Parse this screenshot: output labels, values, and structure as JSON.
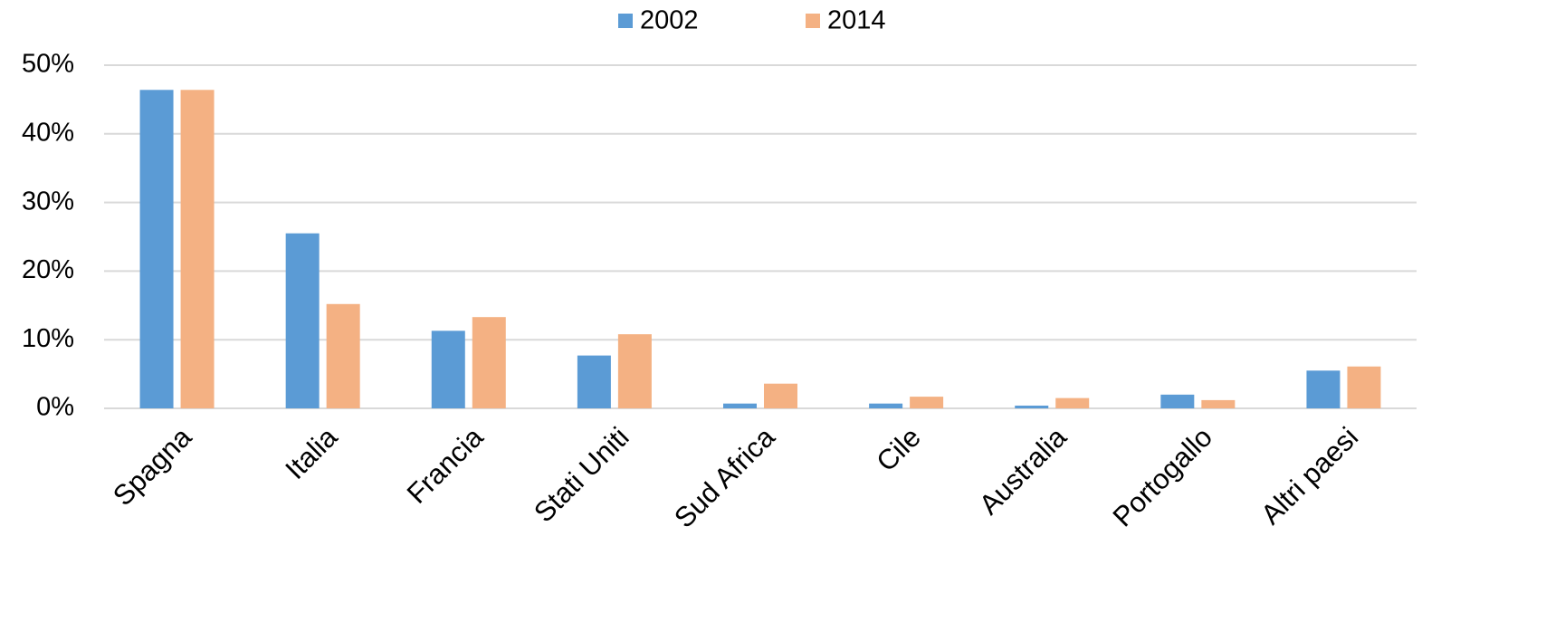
{
  "chart_data": {
    "type": "bar",
    "categories": [
      "Spagna",
      "Italia",
      "Francia",
      "Stati Uniti",
      "Sud Africa",
      "Cile",
      "Australia",
      "Portogallo",
      "Altri paesi"
    ],
    "series": [
      {
        "name": "2002",
        "color": "#5b9bd5",
        "values": [
          46.4,
          25.5,
          11.3,
          7.7,
          0.7,
          0.7,
          0.4,
          2.0,
          5.5
        ]
      },
      {
        "name": "2014",
        "color": "#f4b183",
        "values": [
          46.4,
          15.2,
          13.3,
          10.8,
          3.6,
          1.7,
          1.5,
          1.2,
          6.1
        ]
      }
    ],
    "ylim": [
      0,
      50
    ],
    "yticks": [
      {
        "value": 0,
        "label": "0%"
      },
      {
        "value": 10,
        "label": "10%"
      },
      {
        "value": 20,
        "label": "20%"
      },
      {
        "value": 30,
        "label": "30%"
      },
      {
        "value": 40,
        "label": "40%"
      },
      {
        "value": 50,
        "label": "50%"
      }
    ],
    "grid": true,
    "legend": "top"
  }
}
